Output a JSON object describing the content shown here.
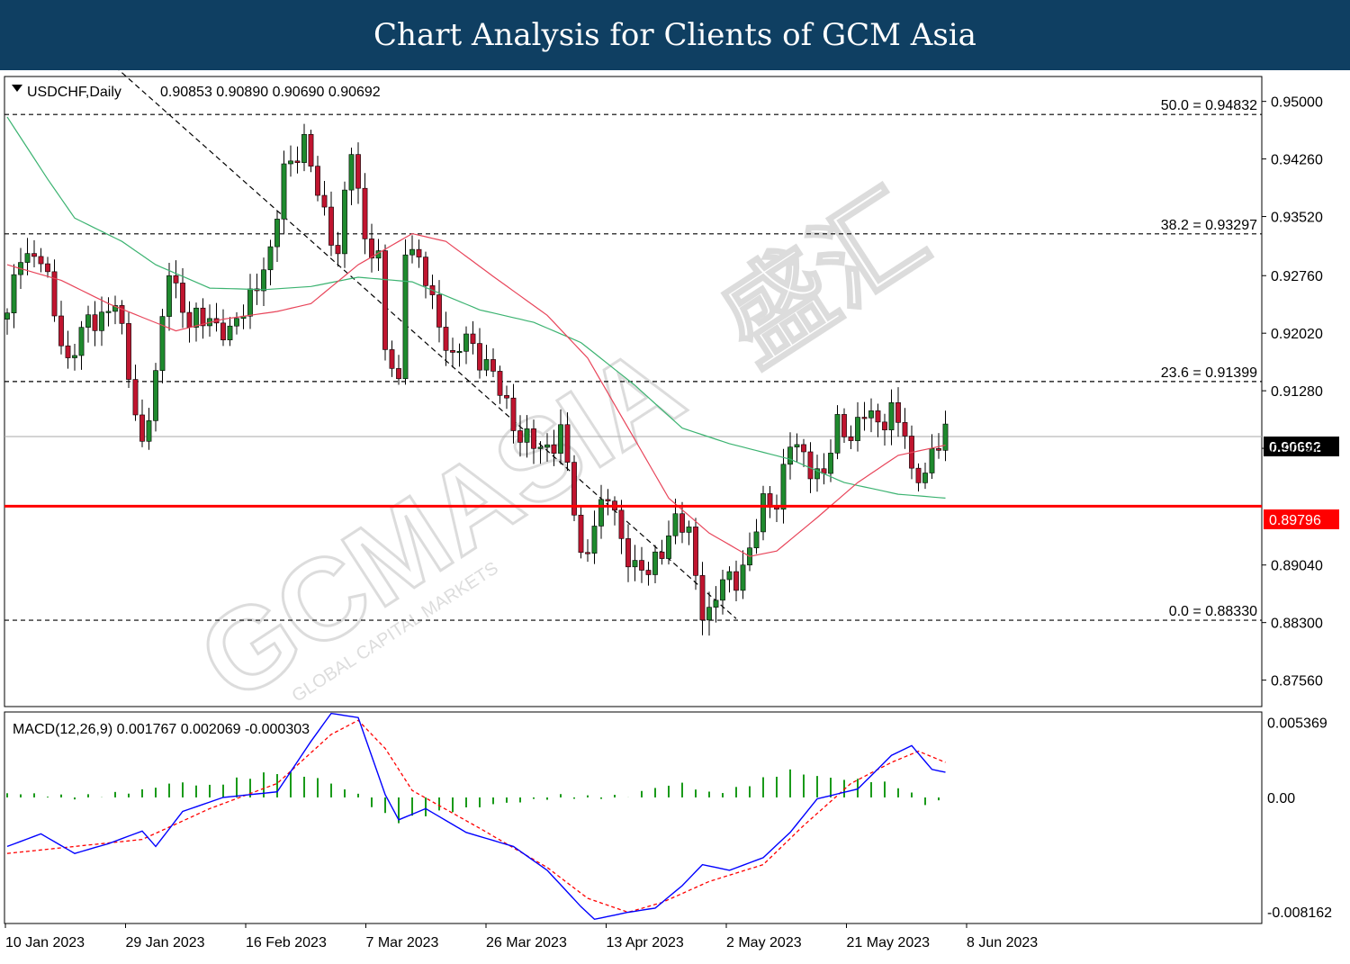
{
  "banner": {
    "title": "Chart Analysis for Clients of GCM Asia"
  },
  "watermark": {
    "brand": "GCMASIA",
    "chinese": "盛汇",
    "tagline": "GLOBAL CAPITAL MARKETS"
  },
  "colors": {
    "banner_bg": "#0f3f62",
    "bull": "#1f8a2e",
    "bear": "#c0152f",
    "sma_fast": "#e8455a",
    "sma_slow": "#3cb371",
    "support": "#ff0000",
    "macd_line": "#0000ff",
    "signal_line": "#ff0000",
    "hist": "#1a9a1a"
  },
  "chart_data": [
    {
      "type": "candlestick",
      "title": "USDCHF,Daily",
      "ohlc_header": "0.90853 0.90890 0.90690 0.90692",
      "last": {
        "open": 0.90853,
        "high": 0.9089,
        "low": 0.9069,
        "close": 0.90692
      },
      "ylim": [
        0.8722,
        0.9532
      ],
      "y_ticks": [
        "0.95000",
        "0.94260",
        "0.93520",
        "0.92760",
        "0.92020",
        "0.91280",
        "0.90540",
        "0.89040",
        "0.88300",
        "0.87560"
      ],
      "x_ticks": [
        "10 Jan 2023",
        "29 Jan 2023",
        "16 Feb 2023",
        "7 Mar 2023",
        "26 Mar 2023",
        "13 Apr 2023",
        "2 May 2023",
        "21 May 2023",
        "8 Jun 2023"
      ],
      "current_price_label": "0.90692",
      "support_label": "0.89796",
      "support_level": 0.89796,
      "fibonacci": [
        {
          "label": "50.0 = 0.94832",
          "value": 0.94832
        },
        {
          "label": "38.2 = 0.93297",
          "value": 0.93297
        },
        {
          "label": "23.6 = 0.91399",
          "value": 0.91399
        },
        {
          "label": "0.0 = 0.88330",
          "value": 0.8833
        }
      ],
      "trendline": {
        "from": {
          "bar": 14,
          "price": 0.956
        },
        "to": {
          "bar": 108,
          "price": 0.8835
        }
      },
      "sma_fast_anchors": [
        [
          0,
          0.929
        ],
        [
          8,
          0.927
        ],
        [
          15,
          0.924
        ],
        [
          25,
          0.9205
        ],
        [
          32,
          0.922
        ],
        [
          40,
          0.923
        ],
        [
          45,
          0.924
        ],
        [
          52,
          0.929
        ],
        [
          60,
          0.933
        ],
        [
          65,
          0.932
        ],
        [
          72,
          0.9275
        ],
        [
          80,
          0.9225
        ],
        [
          86,
          0.917
        ],
        [
          92,
          0.908
        ],
        [
          98,
          0.899
        ],
        [
          104,
          0.8945
        ],
        [
          110,
          0.8915
        ],
        [
          114,
          0.8922
        ],
        [
          120,
          0.8965
        ],
        [
          126,
          0.901
        ],
        [
          132,
          0.9045
        ],
        [
          139,
          0.9058
        ]
      ],
      "sma_slow_anchors": [
        [
          0,
          0.948
        ],
        [
          6,
          0.94
        ],
        [
          10,
          0.935
        ],
        [
          17,
          0.932
        ],
        [
          22,
          0.929
        ],
        [
          30,
          0.926
        ],
        [
          38,
          0.9258
        ],
        [
          45,
          0.9262
        ],
        [
          52,
          0.9274
        ],
        [
          60,
          0.9268
        ],
        [
          70,
          0.9232
        ],
        [
          78,
          0.9216
        ],
        [
          85,
          0.919
        ],
        [
          93,
          0.9135
        ],
        [
          100,
          0.908
        ],
        [
          107,
          0.906
        ],
        [
          116,
          0.904
        ],
        [
          124,
          0.901
        ],
        [
          132,
          0.8995
        ],
        [
          139,
          0.899
        ]
      ],
      "candle_anchors": [
        [
          0,
          0.922
        ],
        [
          2,
          0.931
        ],
        [
          5,
          0.9295
        ],
        [
          9,
          0.9165
        ],
        [
          12,
          0.9215
        ],
        [
          16,
          0.924
        ],
        [
          20,
          0.906
        ],
        [
          22,
          0.914
        ],
        [
          24,
          0.929
        ],
        [
          27,
          0.921
        ],
        [
          30,
          0.9225
        ],
        [
          33,
          0.9195
        ],
        [
          36,
          0.9255
        ],
        [
          39,
          0.9295
        ],
        [
          41,
          0.942
        ],
        [
          44,
          0.944
        ],
        [
          47,
          0.936
        ],
        [
          49,
          0.93
        ],
        [
          51,
          0.944
        ],
        [
          53,
          0.933
        ],
        [
          55,
          0.929
        ],
        [
          56,
          0.918
        ],
        [
          58,
          0.914
        ],
        [
          59,
          0.932
        ],
        [
          62,
          0.927
        ],
        [
          64,
          0.922
        ],
        [
          66,
          0.916
        ],
        [
          68,
          0.92
        ],
        [
          71,
          0.916
        ],
        [
          74,
          0.911
        ],
        [
          76,
          0.907
        ],
        [
          79,
          0.905
        ],
        [
          82,
          0.9075
        ],
        [
          83,
          0.903
        ],
        [
          85,
          0.891
        ],
        [
          87,
          0.896
        ],
        [
          89,
          0.899
        ],
        [
          91,
          0.894
        ],
        [
          93,
          0.89
        ],
        [
          95,
          0.889
        ],
        [
          97,
          0.893
        ],
        [
          99,
          0.896
        ],
        [
          101,
          0.894
        ],
        [
          103,
          0.885
        ],
        [
          104,
          0.884
        ],
        [
          106,
          0.888
        ],
        [
          108,
          0.889
        ],
        [
          110,
          0.892
        ],
        [
          112,
          0.898
        ],
        [
          114,
          0.899
        ],
        [
          116,
          0.906
        ],
        [
          118,
          0.904
        ],
        [
          121,
          0.902
        ],
        [
          123,
          0.908
        ],
        [
          125,
          0.9075
        ],
        [
          127,
          0.91
        ],
        [
          129,
          0.908
        ],
        [
          131,
          0.911
        ],
        [
          133,
          0.907
        ],
        [
          134,
          0.901
        ],
        [
          136,
          0.903
        ],
        [
          137,
          0.905
        ],
        [
          139,
          0.907
        ]
      ],
      "bars": 140
    },
    {
      "type": "macd",
      "title": "MACD(12,26,9) 0.001767 0.002069 -0.000303",
      "values": {
        "macd": 0.001767,
        "signal": 0.002069,
        "histogram": -0.000303
      },
      "ylim": [
        -0.009,
        0.0061
      ],
      "y_ticks": [
        "0.005369",
        "0.00",
        "-0.008162"
      ],
      "macd_anchors": [
        [
          0,
          -0.0035
        ],
        [
          5,
          -0.0026
        ],
        [
          10,
          -0.004
        ],
        [
          15,
          -0.0033
        ],
        [
          20,
          -0.0024
        ],
        [
          22,
          -0.0035
        ],
        [
          26,
          -0.001
        ],
        [
          32,
          0.0
        ],
        [
          40,
          0.0004
        ],
        [
          45,
          0.004
        ],
        [
          48,
          0.006
        ],
        [
          52,
          0.0057
        ],
        [
          56,
          0.0002
        ],
        [
          58,
          -0.0016
        ],
        [
          62,
          -0.0008
        ],
        [
          68,
          -0.0025
        ],
        [
          75,
          -0.0035
        ],
        [
          80,
          -0.0052
        ],
        [
          85,
          -0.0078
        ],
        [
          87,
          -0.0087
        ],
        [
          92,
          -0.0082
        ],
        [
          96,
          -0.0079
        ],
        [
          100,
          -0.0063
        ],
        [
          103,
          -0.0048
        ],
        [
          107,
          -0.0052
        ],
        [
          112,
          -0.0043
        ],
        [
          116,
          -0.0025
        ],
        [
          120,
          -0.0001
        ],
        [
          126,
          0.0006
        ],
        [
          131,
          0.003
        ],
        [
          134,
          0.0037
        ],
        [
          137,
          0.002
        ],
        [
          139,
          0.0018
        ]
      ],
      "signal_anchors": [
        [
          0,
          -0.004
        ],
        [
          10,
          -0.0035
        ],
        [
          20,
          -0.003
        ],
        [
          30,
          -0.0008
        ],
        [
          40,
          0.001
        ],
        [
          48,
          0.0045
        ],
        [
          52,
          0.0055
        ],
        [
          56,
          0.0035
        ],
        [
          60,
          0.0005
        ],
        [
          70,
          -0.0022
        ],
        [
          80,
          -0.005
        ],
        [
          86,
          -0.0072
        ],
        [
          92,
          -0.0082
        ],
        [
          97,
          -0.0075
        ],
        [
          104,
          -0.006
        ],
        [
          112,
          -0.0048
        ],
        [
          118,
          -0.002
        ],
        [
          125,
          0.001
        ],
        [
          131,
          0.0025
        ],
        [
          135,
          0.0033
        ],
        [
          139,
          0.0025
        ]
      ],
      "histogram_anchors": [
        [
          0,
          0.0003
        ],
        [
          5,
          0.0002
        ],
        [
          10,
          0.0
        ],
        [
          15,
          0.0002
        ],
        [
          20,
          0.0005
        ],
        [
          25,
          0.0011
        ],
        [
          30,
          0.0008
        ],
        [
          35,
          0.0014
        ],
        [
          40,
          0.0018
        ],
        [
          45,
          0.0015
        ],
        [
          48,
          0.001
        ],
        [
          52,
          0.0002
        ],
        [
          55,
          -0.001
        ],
        [
          58,
          -0.0017
        ],
        [
          62,
          -0.0012
        ],
        [
          68,
          -0.0008
        ],
        [
          72,
          -0.0005
        ],
        [
          78,
          -0.0002
        ],
        [
          82,
          0.0001
        ],
        [
          86,
          0.0
        ],
        [
          92,
          0.0001
        ],
        [
          96,
          0.0007
        ],
        [
          100,
          0.001
        ],
        [
          104,
          0.0003
        ],
        [
          108,
          0.0006
        ],
        [
          112,
          0.0013
        ],
        [
          116,
          0.0019
        ],
        [
          120,
          0.0015
        ],
        [
          124,
          0.0013
        ],
        [
          128,
          0.0012
        ],
        [
          132,
          0.0008
        ],
        [
          136,
          -0.0004
        ],
        [
          139,
          -0.0003
        ]
      ]
    }
  ]
}
